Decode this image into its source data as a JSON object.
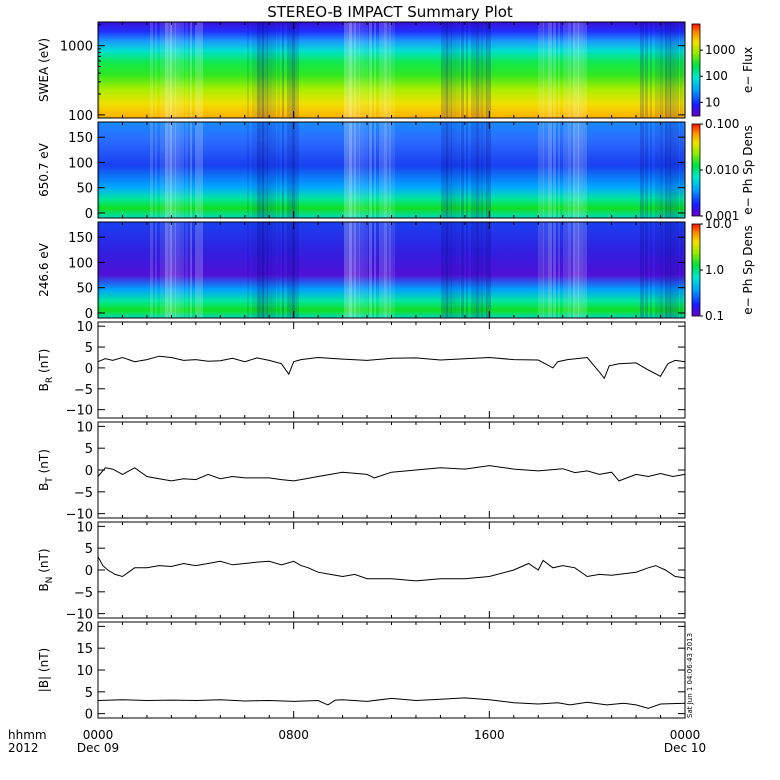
{
  "title": "STEREO-B IMPACT Summary Plot",
  "footer": {
    "left_top": "hhmm",
    "left_bottom": "2012"
  },
  "x_axis": {
    "ticks": [
      {
        "value": 0,
        "label1": "0000",
        "label2": "Dec 09"
      },
      {
        "value": 8,
        "label1": "0800",
        "label2": ""
      },
      {
        "value": 16,
        "label1": "1600",
        "label2": ""
      },
      {
        "value": 24,
        "label1": "0000",
        "label2": "Dec 10"
      }
    ],
    "range_hours": [
      0,
      24
    ]
  },
  "timestamp": "Sat Jun  1 04:06:43 2013",
  "chart_data": [
    {
      "type": "heatmap",
      "ylabel": "SWEA (eV)",
      "ylog": true,
      "ylim": [
        90,
        2200
      ],
      "yticks": [
        {
          "value": 100,
          "label": "100"
        },
        {
          "value": 1000,
          "label": "1000"
        }
      ],
      "colorbar": {
        "label": "e− Flux",
        "log": true,
        "range": [
          3,
          10000
        ],
        "ticks": [
          {
            "value": 10,
            "label": "10"
          },
          {
            "value": 100,
            "label": "100"
          },
          {
            "value": 1000,
            "label": "1000"
          }
        ]
      }
    },
    {
      "type": "heatmap",
      "ylabel": "650.7 eV",
      "ylim": [
        -10,
        180
      ],
      "yticks": [
        {
          "value": 0,
          "label": "0"
        },
        {
          "value": 50,
          "label": "50"
        },
        {
          "value": 100,
          "label": "100"
        },
        {
          "value": 150,
          "label": "150"
        }
      ],
      "colorbar": {
        "label": "e− Ph Sp Dens",
        "log": true,
        "range": [
          0.001,
          0.1
        ],
        "ticks": [
          {
            "value": 0.001,
            "label": "0.001"
          },
          {
            "value": 0.01,
            "label": "0.010"
          },
          {
            "value": 0.1,
            "label": "0.100"
          }
        ]
      }
    },
    {
      "type": "heatmap",
      "ylabel": "246.6 eV",
      "ylim": [
        -10,
        180
      ],
      "yticks": [
        {
          "value": 0,
          "label": "0"
        },
        {
          "value": 50,
          "label": "50"
        },
        {
          "value": 100,
          "label": "100"
        },
        {
          "value": 150,
          "label": "150"
        }
      ],
      "colorbar": {
        "label": "e− Ph Sp Dens",
        "log": true,
        "range": [
          0.1,
          10
        ],
        "ticks": [
          {
            "value": 0.1,
            "label": "0.1"
          },
          {
            "value": 1,
            "label": "1.0"
          },
          {
            "value": 10,
            "label": "10.0"
          }
        ]
      }
    },
    {
      "type": "line",
      "ylabel": "B",
      "ysub": "R",
      "yunit": " (nT)",
      "ylim": [
        -12,
        11
      ],
      "yticks": [
        {
          "value": -10,
          "label": "−10"
        },
        {
          "value": -5,
          "label": "−5"
        },
        {
          "value": 0,
          "label": "0"
        },
        {
          "value": 5,
          "label": "5"
        },
        {
          "value": 10,
          "label": "10"
        }
      ],
      "x": [
        0,
        0.3,
        0.6,
        1,
        1.5,
        2,
        2.5,
        3,
        3.5,
        4,
        4.5,
        5,
        5.5,
        6,
        6.5,
        7,
        7.5,
        7.8,
        8.0,
        8.3,
        9,
        10,
        11,
        12,
        13,
        14,
        15,
        16,
        17,
        18,
        18.6,
        18.8,
        19.2,
        20,
        20.5,
        20.7,
        20.9,
        21.3,
        22,
        22.5,
        23,
        23.3,
        23.6,
        24
      ],
      "y": [
        1.5,
        2.2,
        1.8,
        2.5,
        1.5,
        2.0,
        2.8,
        2.5,
        1.8,
        2.0,
        1.6,
        1.7,
        2.3,
        1.5,
        2.4,
        1.8,
        1.0,
        -1.5,
        1.5,
        2.0,
        2.5,
        2.1,
        1.8,
        2.3,
        2.4,
        1.9,
        2.2,
        2.5,
        2.0,
        1.9,
        0.0,
        1.5,
        2.0,
        2.5,
        -1.0,
        -2.5,
        0.5,
        1.0,
        1.2,
        -0.5,
        -2.0,
        1.0,
        1.8,
        1.5
      ]
    },
    {
      "type": "line",
      "ylabel": "B",
      "ysub": "T",
      "yunit": " (nT)",
      "ylim": [
        -11,
        11
      ],
      "yticks": [
        {
          "value": -10,
          "label": "−10"
        },
        {
          "value": -5,
          "label": "−5"
        },
        {
          "value": 0,
          "label": "0"
        },
        {
          "value": 5,
          "label": "5"
        },
        {
          "value": 10,
          "label": "10"
        }
      ],
      "x": [
        0,
        0.3,
        0.6,
        1,
        1.5,
        2,
        2.5,
        3,
        3.5,
        4,
        4.5,
        5,
        5.5,
        6,
        7,
        7.5,
        8,
        8.5,
        9,
        10,
        11,
        11.3,
        12,
        13,
        14,
        15,
        16,
        17,
        18,
        19,
        19.5,
        20,
        20.5,
        21,
        21.3,
        22,
        22.5,
        23,
        23.5,
        24
      ],
      "y": [
        -1.5,
        0.5,
        0.2,
        -1.0,
        0.5,
        -1.5,
        -2.0,
        -2.5,
        -2.0,
        -2.2,
        -1.0,
        -2.0,
        -1.5,
        -1.8,
        -1.8,
        -2.2,
        -2.5,
        -2.0,
        -1.5,
        -0.5,
        -1.0,
        -1.8,
        -0.5,
        0.0,
        0.5,
        0.2,
        1.0,
        0.2,
        -0.2,
        0.3,
        -0.6,
        -0.2,
        -1.0,
        -0.5,
        -2.5,
        -1.0,
        -1.5,
        -0.8,
        -1.5,
        -1.0
      ]
    },
    {
      "type": "line",
      "ylabel": "B",
      "ysub": "N",
      "yunit": " (nT)",
      "ylim": [
        -11,
        11
      ],
      "yticks": [
        {
          "value": -10,
          "label": "−10"
        },
        {
          "value": -5,
          "label": "−5"
        },
        {
          "value": 0,
          "label": "0"
        },
        {
          "value": 5,
          "label": "5"
        },
        {
          "value": 10,
          "label": "10"
        }
      ],
      "x": [
        0,
        0.2,
        0.4,
        0.7,
        1.0,
        1.5,
        2,
        2.5,
        3,
        3.5,
        4,
        4.5,
        5,
        5.5,
        6,
        6.5,
        7,
        7.5,
        8,
        8.3,
        8.6,
        9,
        9.5,
        10,
        10.5,
        11,
        12,
        13,
        14,
        15,
        16,
        17,
        17.6,
        18,
        18.2,
        18.6,
        19,
        19.5,
        20,
        20.5,
        21,
        22,
        22.5,
        22.8,
        23.2,
        23.6,
        24
      ],
      "y": [
        3.0,
        1.0,
        0.0,
        -1.0,
        -1.5,
        0.5,
        0.5,
        1.0,
        0.8,
        1.5,
        1.0,
        1.5,
        2.0,
        1.2,
        1.5,
        1.8,
        2.0,
        1.2,
        2.0,
        1.0,
        0.5,
        -0.5,
        -1.0,
        -1.5,
        -1.0,
        -2.0,
        -2.0,
        -2.5,
        -2.0,
        -2.0,
        -1.5,
        0.0,
        1.5,
        0.0,
        2.2,
        0.5,
        1.0,
        0.5,
        -1.5,
        -1.0,
        -1.2,
        -0.5,
        0.5,
        1.0,
        0.0,
        -1.5,
        -1.8
      ]
    },
    {
      "type": "line",
      "ylabel": "|B|",
      "ysub": "",
      "yunit": " (nT)",
      "ylim": [
        -1,
        21
      ],
      "yticks": [
        {
          "value": 0,
          "label": "0"
        },
        {
          "value": 5,
          "label": "5"
        },
        {
          "value": 10,
          "label": "10"
        },
        {
          "value": 15,
          "label": "15"
        },
        {
          "value": 20,
          "label": "20"
        }
      ],
      "x": [
        0,
        1,
        2,
        3,
        4,
        5,
        6,
        7,
        8,
        9,
        9.4,
        9.7,
        10,
        11,
        12,
        13,
        14,
        15,
        16,
        17,
        18,
        18.8,
        19.3,
        20,
        20.8,
        21.5,
        22,
        22.5,
        23,
        24
      ],
      "y": [
        3.0,
        3.2,
        3.0,
        3.1,
        3.0,
        3.2,
        2.9,
        3.0,
        2.8,
        3.0,
        2.0,
        3.1,
        3.2,
        2.8,
        3.5,
        3.0,
        3.3,
        3.6,
        3.2,
        2.5,
        2.2,
        2.5,
        2.0,
        2.6,
        2.0,
        2.4,
        2.0,
        1.2,
        2.2,
        2.4
      ]
    }
  ]
}
